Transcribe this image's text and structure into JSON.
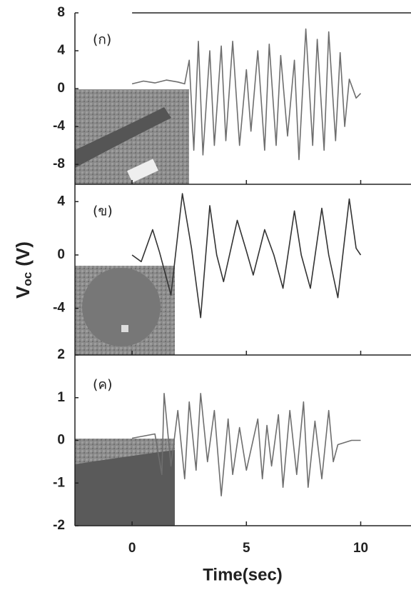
{
  "y_label": {
    "text": "V",
    "subscript": "oc",
    "unit": "(V)"
  },
  "chart_data": [
    {
      "type": "line",
      "annotation": "(ก)",
      "xlim": [
        -2.5,
        12.2
      ],
      "xticks": [
        0,
        5,
        10
      ],
      "ylim": [
        -10.1,
        8
      ],
      "yticks": [
        8,
        4,
        0,
        -4,
        -8
      ],
      "series": [
        {
          "color": "#6e6e6e",
          "x": [
            0,
            0.5,
            1,
            1.5,
            2,
            2.3,
            2.5,
            2.7,
            2.9,
            3.1,
            3.4,
            3.6,
            3.9,
            4.1,
            4.4,
            4.7,
            5.0,
            5.2,
            5.5,
            5.8,
            6.0,
            6.3,
            6.5,
            6.8,
            7.1,
            7.3,
            7.6,
            7.9,
            8.1,
            8.4,
            8.6,
            8.9,
            9.1,
            9.3,
            9.5,
            9.8,
            10
          ],
          "values": [
            0.5,
            0.8,
            0.6,
            0.9,
            0.7,
            0.5,
            3,
            -6.5,
            5,
            -7,
            4,
            -6,
            4.5,
            -5.5,
            5,
            -6,
            2,
            -4.5,
            4,
            -6.5,
            4.7,
            -6,
            3.5,
            -5,
            3,
            -7.5,
            6.3,
            -6,
            5.2,
            -6.5,
            6,
            -5.5,
            3.8,
            -4,
            1,
            -1,
            -0.5
          ]
        }
      ]
    },
    {
      "type": "line",
      "annotation": "(ข)",
      "xlim": [
        -2.5,
        12.2
      ],
      "xticks": [
        0,
        5,
        10
      ],
      "ylim": [
        -7.5,
        5.3
      ],
      "yticks": [
        4,
        0,
        -4
      ],
      "series": [
        {
          "color": "#333333",
          "x": [
            0,
            0.4,
            0.9,
            1.2,
            1.7,
            2.2,
            2.6,
            3.0,
            3.4,
            3.7,
            4.0,
            4.6,
            5.0,
            5.3,
            5.8,
            6.2,
            6.6,
            7.1,
            7.4,
            7.8,
            8.3,
            8.6,
            9.0,
            9.5,
            9.8,
            10
          ],
          "values": [
            0,
            -0.5,
            1.9,
            0.2,
            -3,
            4.6,
            0.5,
            -4.7,
            3.7,
            0,
            -2,
            2.6,
            0.3,
            -1.5,
            1.9,
            0,
            -2.5,
            3.3,
            0,
            -2.5,
            3.5,
            0,
            -3.2,
            4.2,
            0.5,
            0
          ]
        }
      ]
    },
    {
      "type": "line",
      "annotation": "(ค)",
      "x_label": "Time(sec)",
      "xlim": [
        -2.5,
        12.2
      ],
      "xticks": [
        0,
        5,
        10
      ],
      "ylim": [
        -2,
        2
      ],
      "yticks": [
        2,
        1,
        0,
        -1,
        -2
      ],
      "series": [
        {
          "color": "#6e6e6e",
          "x": [
            0,
            0.5,
            1.0,
            1.3,
            1.4,
            1.7,
            2.0,
            2.3,
            2.5,
            2.8,
            3.0,
            3.3,
            3.6,
            3.9,
            4.2,
            4.4,
            4.7,
            5.0,
            5.5,
            5.7,
            5.9,
            6.1,
            6.4,
            6.6,
            6.9,
            7.2,
            7.5,
            7.7,
            8.0,
            8.3,
            8.6,
            8.8,
            9.0,
            9.3,
            9.6,
            10
          ],
          "values": [
            0.05,
            0.1,
            0.15,
            -0.8,
            1.1,
            -0.6,
            0.7,
            -0.9,
            0.9,
            -0.7,
            1.1,
            -0.5,
            0.7,
            -1.3,
            0.5,
            -0.8,
            0.3,
            -0.7,
            0.5,
            -0.9,
            0.35,
            -0.6,
            0.6,
            -1.1,
            0.7,
            -0.8,
            0.9,
            -1.1,
            0.45,
            -0.9,
            0.7,
            -0.5,
            -0.1,
            -0.05,
            0,
            0
          ]
        }
      ]
    }
  ]
}
